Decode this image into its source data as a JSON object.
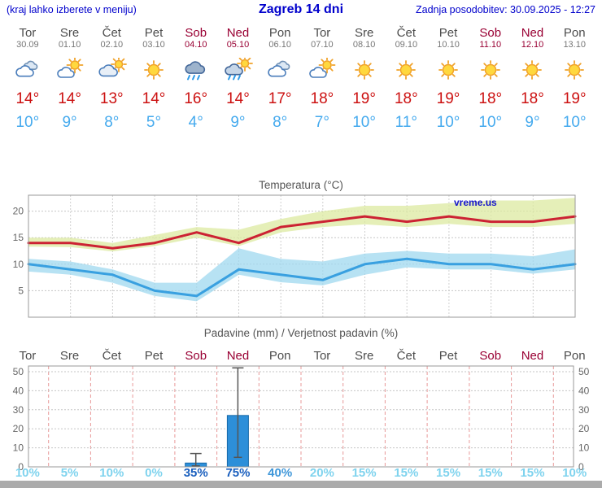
{
  "header": {
    "left_note": "(kraj lahko izberete v meniju)",
    "title": "Zagreb 14 dni",
    "updated": "Zadnja posodobitev: 30.09.2025 - 12:27"
  },
  "watermark": "vreme.us",
  "colors": {
    "accent_blue": "#0000cc",
    "day_normal": "#4d4d4d",
    "day_weekend": "#990033",
    "temp_max": "#cc1111",
    "temp_min": "#45aaee",
    "tones": {
      "light": "#7fd3ee",
      "medium": "#3f97d9",
      "dark": "#1a5fbe"
    }
  },
  "days": [
    {
      "name": "Tor",
      "date": "30.09",
      "weekend": false,
      "icon": "cloudy",
      "tmax": "14°",
      "tmin": "10°"
    },
    {
      "name": "Sre",
      "date": "01.10",
      "weekend": false,
      "icon": "partly-cloudy",
      "tmax": "14°",
      "tmin": "9°"
    },
    {
      "name": "Čet",
      "date": "02.10",
      "weekend": false,
      "icon": "mostly-cloudy",
      "tmax": "13°",
      "tmin": "8°"
    },
    {
      "name": "Pet",
      "date": "03.10",
      "weekend": false,
      "icon": "sunny",
      "tmax": "14°",
      "tmin": "5°"
    },
    {
      "name": "Sob",
      "date": "04.10",
      "weekend": true,
      "icon": "rain",
      "tmax": "16°",
      "tmin": "4°"
    },
    {
      "name": "Ned",
      "date": "05.10",
      "weekend": true,
      "icon": "rain-sun",
      "tmax": "14°",
      "tmin": "9°"
    },
    {
      "name": "Pon",
      "date": "06.10",
      "weekend": false,
      "icon": "cloudy",
      "tmax": "17°",
      "tmin": "8°"
    },
    {
      "name": "Tor",
      "date": "07.10",
      "weekend": false,
      "icon": "partly-cloudy",
      "tmax": "18°",
      "tmin": "7°"
    },
    {
      "name": "Sre",
      "date": "08.10",
      "weekend": false,
      "icon": "sunny",
      "tmax": "19°",
      "tmin": "10°"
    },
    {
      "name": "Čet",
      "date": "09.10",
      "weekend": false,
      "icon": "sunny",
      "tmax": "18°",
      "tmin": "11°"
    },
    {
      "name": "Pet",
      "date": "10.10",
      "weekend": false,
      "icon": "sunny",
      "tmax": "19°",
      "tmin": "10°"
    },
    {
      "name": "Sob",
      "date": "11.10",
      "weekend": true,
      "icon": "sunny",
      "tmax": "18°",
      "tmin": "10°"
    },
    {
      "name": "Ned",
      "date": "12.10",
      "weekend": true,
      "icon": "sunny",
      "tmax": "18°",
      "tmin": "9°"
    },
    {
      "name": "Pon",
      "date": "13.10",
      "weekend": false,
      "icon": "sunny",
      "tmax": "19°",
      "tmin": "10°"
    }
  ],
  "chart_data": [
    {
      "type": "line",
      "title": "Temperatura (°C)",
      "categories": [
        "Tor",
        "Sre",
        "Čet",
        "Pet",
        "Sob",
        "Ned",
        "Pon",
        "Tor",
        "Sre",
        "Čet",
        "Pet",
        "Sob",
        "Ned",
        "Pon"
      ],
      "ylim": [
        0,
        23
      ],
      "yticks": [
        5,
        10,
        15,
        20
      ],
      "grid": true,
      "series": [
        {
          "name": "Tmax",
          "color": "#cc2233",
          "band_color": "#dce9a0",
          "values": [
            14,
            14,
            13,
            14,
            16,
            14,
            17,
            18,
            19,
            18,
            19,
            18,
            18,
            19
          ],
          "band_upper": [
            15,
            15,
            14,
            15.5,
            17,
            16.5,
            18.5,
            20,
            21,
            21,
            21.5,
            22,
            22,
            22.5
          ],
          "band_lower": [
            13.3,
            13.2,
            12.4,
            13.4,
            15,
            13.4,
            16,
            17,
            17.5,
            17,
            17.6,
            17,
            17,
            17.6
          ]
        },
        {
          "name": "Tmin",
          "color": "#39a0e0",
          "band_color": "#9fd8ef",
          "values": [
            10,
            9,
            8,
            5,
            4,
            9,
            8,
            7,
            10,
            11,
            10,
            10,
            9,
            10
          ],
          "band_upper": [
            11,
            10.5,
            9,
            6.5,
            6.5,
            13,
            11,
            10.5,
            12,
            12.5,
            12,
            12,
            11.5,
            12.8
          ],
          "band_lower": [
            8.6,
            8,
            6.5,
            4,
            3,
            8,
            6.6,
            6,
            8,
            9.4,
            9,
            9,
            8.2,
            9
          ]
        }
      ]
    },
    {
      "type": "bar",
      "title": "Padavine (mm) / Verjetnost padavin (%)",
      "categories": [
        "Tor",
        "Sre",
        "Čet",
        "Pet",
        "Sob",
        "Ned",
        "Pon",
        "Tor",
        "Sre",
        "Čet",
        "Pet",
        "Sob",
        "Ned",
        "Pon"
      ],
      "ylim": [
        0,
        53
      ],
      "yticks": [
        0,
        10,
        20,
        30,
        40,
        50
      ],
      "bar_color": "#2d8fd9",
      "bar_edge_color": "#1668a8",
      "values": [
        0,
        0,
        0,
        0,
        2,
        27,
        0,
        0,
        0,
        0,
        0,
        0,
        0,
        0
      ],
      "whisker_low": [
        0,
        0,
        0,
        0,
        0.5,
        5,
        0,
        0,
        0,
        0,
        0,
        0,
        0,
        0
      ],
      "whisker_high": [
        0,
        0,
        0,
        0,
        7,
        52,
        0,
        0,
        0,
        0,
        0,
        0,
        0,
        0
      ],
      "probabilities": [
        {
          "label": "10%",
          "tone": "light"
        },
        {
          "label": "5%",
          "tone": "light"
        },
        {
          "label": "10%",
          "tone": "light"
        },
        {
          "label": "0%",
          "tone": "light"
        },
        {
          "label": "35%",
          "tone": "dark"
        },
        {
          "label": "75%",
          "tone": "dark"
        },
        {
          "label": "40%",
          "tone": "medium"
        },
        {
          "label": "20%",
          "tone": "light"
        },
        {
          "label": "15%",
          "tone": "light"
        },
        {
          "label": "15%",
          "tone": "light"
        },
        {
          "label": "15%",
          "tone": "light"
        },
        {
          "label": "15%",
          "tone": "light"
        },
        {
          "label": "15%",
          "tone": "light"
        },
        {
          "label": "10%",
          "tone": "light"
        }
      ]
    }
  ]
}
